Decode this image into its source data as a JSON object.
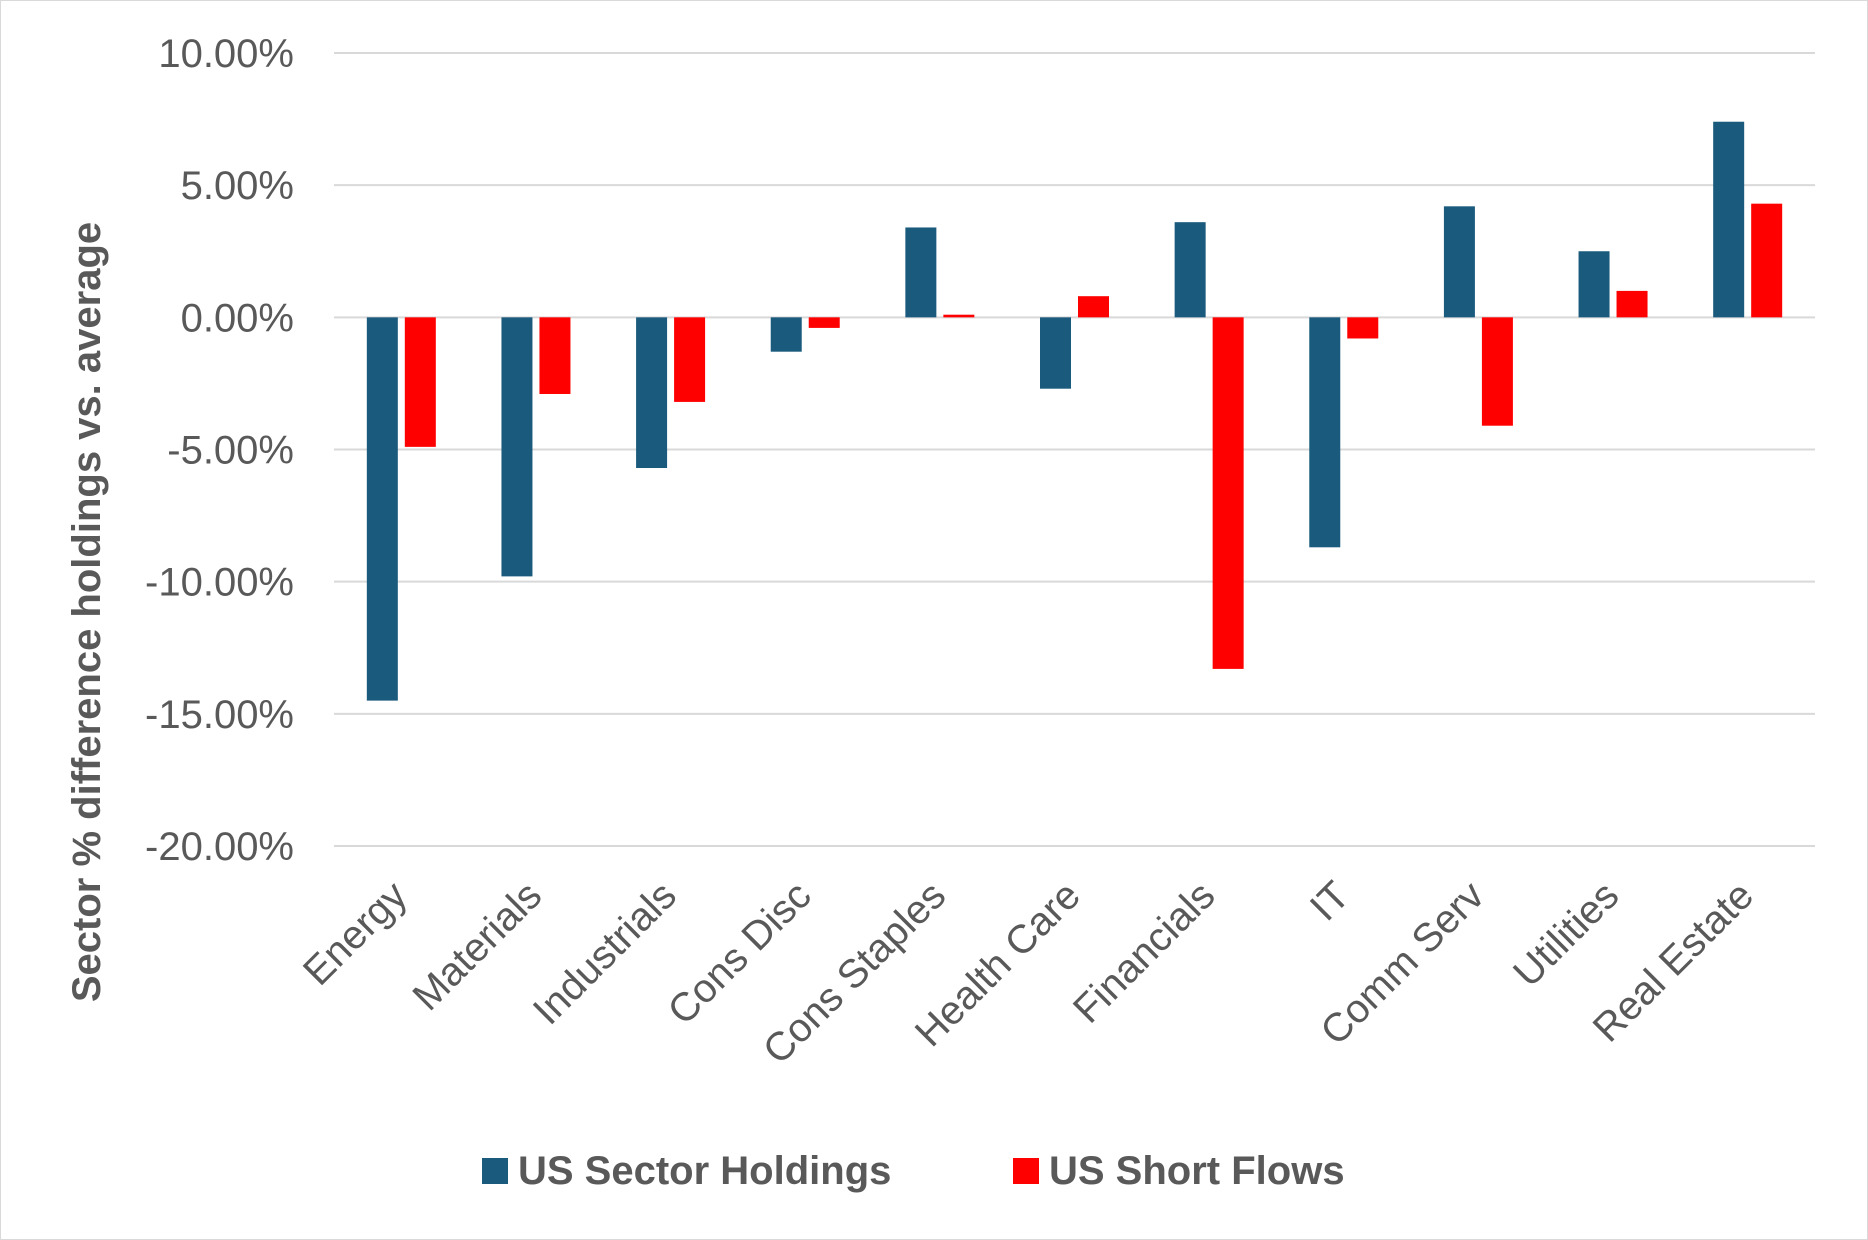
{
  "chart_data": {
    "type": "bar",
    "ylabel": "Sector % difference holdings vs. average",
    "ylim": [
      -20,
      10
    ],
    "ytick_values": [
      10,
      5,
      0,
      -5,
      -10,
      -15,
      -20
    ],
    "ytick_labels": [
      "10.00%",
      "5.00%",
      "0.00%",
      "-5.00%",
      "-10.00%",
      "-15.00%",
      "-20.00%"
    ],
    "grid": true,
    "legend_position": "bottom",
    "categories": [
      "Energy",
      "Materials",
      "Industrials",
      "Cons Disc",
      "Cons Staples",
      "Health Care",
      "Financials",
      "IT",
      "Comm Serv",
      "Utilities",
      "Real Estate"
    ],
    "series": [
      {
        "name": "US Sector Holdings",
        "color": "#1a5a7d",
        "values": [
          -14.5,
          -9.8,
          -5.7,
          -1.3,
          3.4,
          -2.7,
          3.6,
          -8.7,
          4.2,
          2.5,
          7.4
        ]
      },
      {
        "name": "US Short Flows",
        "color": "#ff0000",
        "values": [
          -4.9,
          -2.9,
          -3.2,
          -0.4,
          0.1,
          0.8,
          -13.3,
          -0.8,
          -4.1,
          1.0,
          4.3
        ]
      }
    ]
  }
}
